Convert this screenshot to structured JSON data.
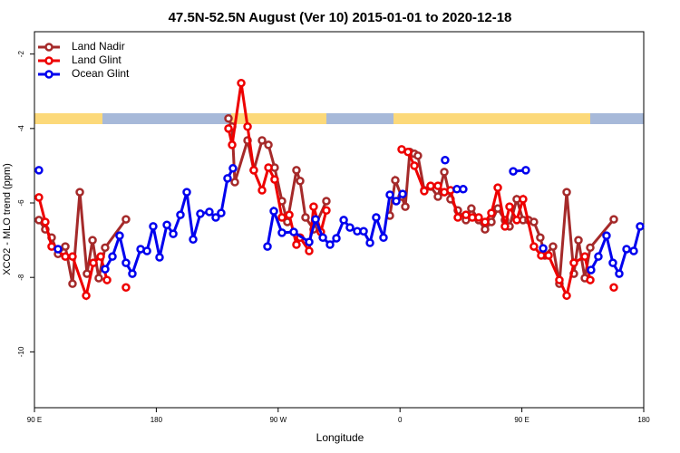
{
  "chart_data": {
    "type": "line",
    "title": "47.5N-52.5N August (Ver 10)   2015-01-01 to 2020-12-18",
    "x_label": "Longitude",
    "y_label": "XCO2 - MLO trend (ppm)",
    "xlim": [
      90,
      540
    ],
    "ylim": [
      -11.5,
      -1.4
    ],
    "xticks": [
      {
        "value": 90,
        "label": "90 E"
      },
      180,
      {
        "value": 270,
        "label": "90 W"
      },
      {
        "value": 360,
        "label": "0"
      },
      {
        "value": 450,
        "label": "90 E"
      },
      {
        "value": 540,
        "label": "180"
      }
    ],
    "yticks": [
      -2,
      -4,
      -6,
      -8,
      -10
    ],
    "legend": "top-left",
    "series": [
      {
        "name": "Land Nadir",
        "color": "#a52a2a",
        "x": [
          93.3,
          98,
          102.7,
          107.4,
          112.8,
          118.1,
          123.5,
          128.8,
          132.9,
          137.5,
          142.2,
          157.6,
          null,
          233.3,
          236,
          238,
          247.4,
          252,
          258.1,
          262.8,
          267.4,
          272.8,
          276.8,
          283.5,
          286.2,
          290.2,
          296.2,
          305.6,
          null,
          352.5,
          356.5,
          361.2,
          363.9,
          367.2,
          370.6,
          373.2,
          377.9,
          382.6,
          388,
          392.7,
          397.3,
          402.7,
          408.7,
          412.7,
          418.1,
          422.8,
          427.5,
          432.2,
          437.5,
          440.9,
          446.2,
          450.9,
          454.9,
          458.9,
          463.6,
          467,
          473,
          477.7,
          483.1,
          488.4,
          491.8,
          496.5,
          500.5,
          517.9
        ],
        "values": [
          -6.46,
          -6.71,
          -6.93,
          -7.37,
          -7.17,
          -8.17,
          -5.71,
          -7.9,
          -7,
          -8.02,
          -7.2,
          -6.44,
          null,
          -3.73,
          -3.95,
          -5.44,
          -4.32,
          -5.12,
          -4.32,
          -4.44,
          -5.05,
          -5.95,
          -6.51,
          -5.12,
          -5.41,
          -6.39,
          -6.71,
          -5.95,
          null,
          -6.34,
          -5.39,
          -5.83,
          -6.1,
          -4.63,
          -4.68,
          -4.73,
          -5.66,
          -5.56,
          -5.83,
          -5.17,
          -5.9,
          -6.2,
          -6.46,
          -6.15,
          -6.46,
          -6.71,
          -6.51,
          -6.15,
          -6.46,
          -6.63,
          -5.9,
          -6.46,
          -6.46,
          -6.51,
          -6.93,
          -7.41,
          -7.17,
          -8.17,
          -5.71,
          -7.9,
          -7,
          -8.02,
          -7.2,
          -6.44
        ]
      },
      {
        "name": "Land Glint",
        "color": "#ee0000",
        "x": [
          93.3,
          98,
          102.7,
          112.8,
          118.1,
          128.2,
          133.5,
          138.9,
          143.6,
          null,
          157.6,
          null,
          233.3,
          236,
          242.7,
          247.4,
          252,
          258.1,
          262.8,
          267.4,
          272.8,
          278.2,
          283.5,
          286.2,
          292.9,
          296.2,
          301.5,
          305.6,
          null,
          361.2,
          365.9,
          370.6,
          377.9,
          382.6,
          388,
          392.7,
          397.3,
          402.7,
          408.7,
          413.4,
          418.1,
          422.8,
          427.5,
          432.2,
          437.5,
          440.9,
          446.2,
          450.9,
          458.9,
          464.3,
          469.7,
          477.7,
          483.1,
          488.4,
          496.5,
          500.5,
          null,
          517.9
        ],
        "values": [
          -5.85,
          -6.51,
          -7.17,
          -7.44,
          -7.44,
          -8.49,
          -7.61,
          -7.44,
          -8.07,
          null,
          -8.27,
          null,
          -4,
          -4.44,
          -2.78,
          -3.95,
          -5.12,
          -5.66,
          -5.05,
          -5.37,
          -6.39,
          -6.32,
          -7.12,
          -6.93,
          -7.29,
          -6.1,
          -6.78,
          -6.2,
          null,
          -4.56,
          -4.63,
          -5,
          -5.68,
          -5.54,
          -5.54,
          -5.71,
          -5.66,
          -6.39,
          -6.32,
          -6.39,
          -6.39,
          -6.51,
          -6.27,
          -5.59,
          -6.63,
          -6.1,
          -6.46,
          -5.9,
          -7.17,
          -7.41,
          -7.41,
          -8.07,
          -8.49,
          -7.61,
          -7.44,
          -8.07,
          null,
          -8.27
        ]
      },
      {
        "name": "Ocean Glint",
        "color": "#0000ee",
        "x": [
          93.3,
          null,
          107.4,
          null,
          142.2,
          147.6,
          152.9,
          157.6,
          162.3,
          168.4,
          173.1,
          177.7,
          182.4,
          187.8,
          192.5,
          197.8,
          202.5,
          207.2,
          212.5,
          219.2,
          223.9,
          227.9,
          232.6,
          236.6,
          null,
          262.1,
          266.8,
          272.8,
          281.5,
          292.9,
          297.6,
          303,
          308.3,
          313,
          318.4,
          323,
          328.4,
          333.1,
          337.8,
          342.4,
          347.8,
          352.5,
          357.2,
          361.9,
          null,
          393.3,
          null,
          402,
          406.7,
          null,
          443.6,
          452.9,
          null,
          465.7,
          null,
          501.1,
          506.5,
          512.5,
          517.2,
          521.9,
          527.3,
          532.6,
          537.3
        ],
        "values": [
          -5.12,
          null,
          -7.24,
          null,
          -7.78,
          -7.44,
          -6.88,
          -7.61,
          -7.9,
          -7.24,
          -7.29,
          -6.63,
          -7.46,
          -6.59,
          -6.83,
          -6.32,
          -5.71,
          -6.98,
          -6.29,
          -6.24,
          -6.39,
          -6.27,
          -5.34,
          -5.07,
          null,
          -7.17,
          -6.22,
          -6.8,
          -6.78,
          -7.05,
          -6.44,
          -6.93,
          -7.12,
          -6.95,
          -6.46,
          -6.66,
          -6.76,
          -6.76,
          -7.07,
          -6.39,
          -6.93,
          -5.78,
          -5.95,
          -5.76,
          null,
          -4.85,
          null,
          -5.63,
          -5.63,
          null,
          -5.15,
          -5.12,
          null,
          -7.22,
          null,
          -7.8,
          -7.44,
          -6.88,
          -7.61,
          -7.9,
          -7.24,
          -7.29,
          -6.63
        ]
      }
    ]
  }
}
